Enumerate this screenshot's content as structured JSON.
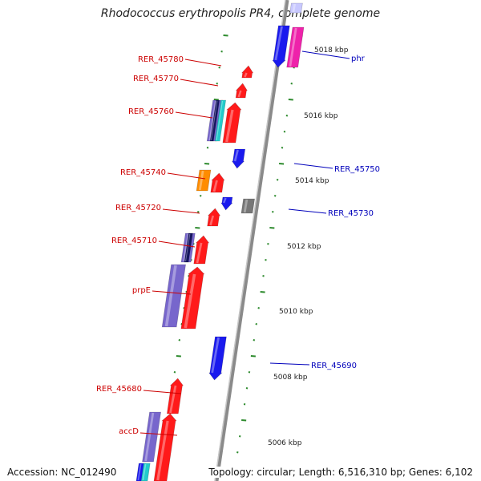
{
  "title": "Rhodococcus erythropolis PR4, complete genome",
  "accession": "Accession: NC_012490",
  "topology": "Topology: circular; Length: 6,516,310 bp; Genes: 6,102",
  "colors": {
    "axis": "#888888",
    "tick": "#2e8b2e",
    "gene_red": "#ff1a1a",
    "gene_blue": "#1a1aee",
    "gene_magenta": "#ee22aa",
    "gene_orange": "#ff8c00",
    "gene_purple": "#7766cc",
    "gene_navy": "#151560",
    "gene_cyan": "#22cccc",
    "gene_gray": "#777777",
    "label_red": "#cc0000",
    "label_blue": "#0000bb"
  },
  "scale_labels": [
    "5018 kbp",
    "5016 kbp",
    "5014 kbp",
    "5012 kbp",
    "5010 kbp",
    "5008 kbp",
    "5006 kbp"
  ],
  "genes_left": [
    {
      "name": "RER_45780"
    },
    {
      "name": "RER_45770"
    },
    {
      "name": "RER_45760"
    },
    {
      "name": "RER_45740"
    },
    {
      "name": "RER_45720"
    },
    {
      "name": "RER_45710"
    },
    {
      "name": "prpE"
    },
    {
      "name": "RER_45680"
    },
    {
      "name": "accD"
    }
  ],
  "genes_right": [
    {
      "name": "phr"
    },
    {
      "name": "RER_45750"
    },
    {
      "name": "RER_45730"
    },
    {
      "name": "RER_45690"
    }
  ]
}
